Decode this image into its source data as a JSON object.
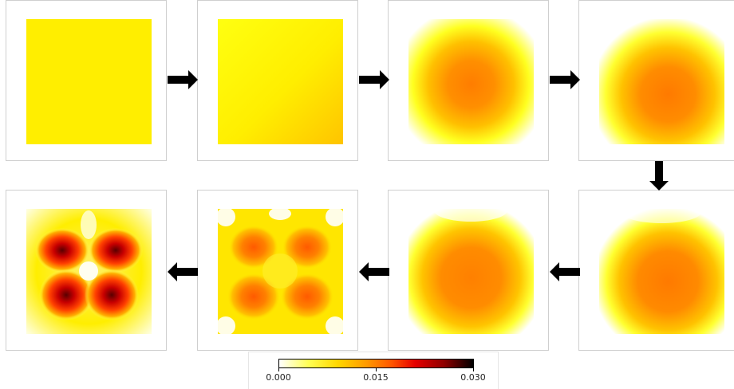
{
  "colorbar": {
    "min_label": "0.000",
    "mid_label": "0.015",
    "max_label": "0.030",
    "colormap": "hot_r",
    "stops": [
      "#ffffff",
      "#ffff55",
      "#ffd800",
      "#ff9a00",
      "#ff5500",
      "#e60000",
      "#8f0000",
      "#000000"
    ]
  },
  "panels": [
    {
      "order": 1,
      "pattern": "uniform-yellow"
    },
    {
      "order": 2,
      "pattern": "yellow-to-amber-gradient"
    },
    {
      "order": 3,
      "pattern": "central-orange-blob"
    },
    {
      "order": 4,
      "pattern": "central-orange-blob-widened"
    },
    {
      "order": 5,
      "pattern": "square-orange-fill"
    },
    {
      "order": 6,
      "pattern": "square-orange-fill-notched"
    },
    {
      "order": 7,
      "pattern": "four-lobe-ring"
    },
    {
      "order": 8,
      "pattern": "four-dark-red-lobes"
    }
  ],
  "flow": [
    "right",
    "right",
    "right",
    "down",
    "left",
    "left",
    "left"
  ]
}
